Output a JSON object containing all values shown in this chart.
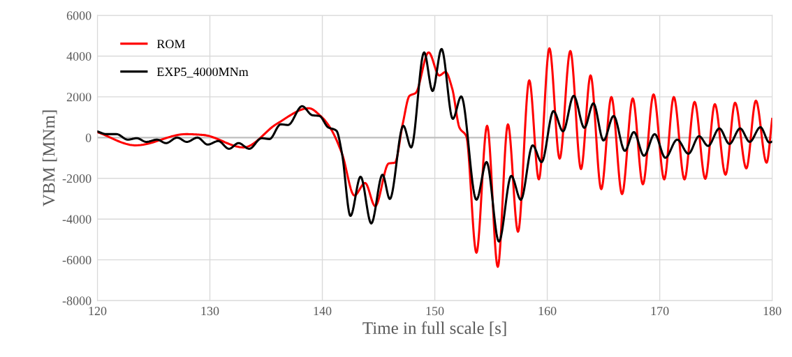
{
  "chart_data": {
    "type": "line",
    "xlabel": "Time in full scale [s]",
    "ylabel": "VBM [MNm]",
    "xlim": [
      120,
      180
    ],
    "xticks": [
      120,
      130,
      140,
      150,
      160,
      170,
      180
    ],
    "ylim": [
      -8000,
      6000
    ],
    "yticks": [
      -8000,
      -6000,
      -4000,
      -2000,
      0,
      2000,
      4000,
      6000
    ],
    "grid": true,
    "legend": "top left",
    "marker": "none",
    "line_style": "solid",
    "series": [
      {
        "name": "ROM",
        "color": "#ff0000",
        "x": [
          120,
          123.4,
          127.9,
          129.4,
          133.0,
          135.96,
          138.8,
          139.9,
          140.7,
          141.75,
          142.85,
          143.8,
          144.7,
          145.9,
          146.45,
          147.15,
          147.75,
          148.3,
          149.45,
          150.4,
          150.95,
          151.55,
          152.2,
          152.8,
          153.7,
          154.65,
          155.6,
          156.5,
          157.4,
          158.4,
          159.25,
          160.19,
          161.1,
          162.05,
          163.0,
          163.85,
          164.8,
          165.7,
          166.65,
          167.6,
          168.5,
          169.45,
          170.4,
          171.25,
          172.2,
          173.1,
          174.05,
          174.9,
          175.85,
          176.7,
          177.7,
          178.55,
          179.5,
          180
        ],
        "values": [
          270,
          -380,
          170,
          130,
          -480,
          680,
          1440,
          1030,
          480,
          -790,
          -2840,
          -2230,
          -3360,
          -1270,
          -1230,
          680,
          2050,
          2190,
          4180,
          3050,
          3220,
          2400,
          480,
          70,
          -5650,
          580,
          -6340,
          650,
          -4620,
          2810,
          -2050,
          4380,
          -1030,
          4250,
          -1540,
          3050,
          -2530,
          1990,
          -2770,
          1920,
          -2290,
          2120,
          -2050,
          1990,
          -2050,
          1750,
          -2020,
          1640,
          -1820,
          1710,
          -1510,
          1810,
          -1230,
          920
        ]
      },
      {
        "name": "EXP5_4000MNm",
        "color": "#000000",
        "x": [
          120,
          120.8,
          121.7,
          122.7,
          123.5,
          124.35,
          125.3,
          126.1,
          127.1,
          127.95,
          128.9,
          129.8,
          130.75,
          131.7,
          132.55,
          133.5,
          134.6,
          135.3,
          136.3,
          136.95,
          138.2,
          139.1,
          139.75,
          140.5,
          141.25,
          141.75,
          142.5,
          143.4,
          144.35,
          145.35,
          146.0,
          147.2,
          147.9,
          149.05,
          149.8,
          150.6,
          151.6,
          152.35,
          153.7,
          154.6,
          155.7,
          156.8,
          157.65,
          158.7,
          159.5,
          160.55,
          161.4,
          162.35,
          163.3,
          164.1,
          165.0,
          165.9,
          166.9,
          167.7,
          168.6,
          169.55,
          170.5,
          171.55,
          172.55,
          173.5,
          174.3,
          175.3,
          176.2,
          177.15,
          178.0,
          178.95,
          179.75,
          180
        ],
        "values": [
          300,
          170,
          170,
          -100,
          -30,
          -210,
          -100,
          -270,
          0,
          -210,
          0,
          -340,
          -170,
          -550,
          -270,
          -550,
          -30,
          -70,
          650,
          620,
          1540,
          1100,
          1060,
          510,
          340,
          -790,
          -3840,
          -1920,
          -4210,
          -1820,
          -3010,
          580,
          -480,
          4180,
          2290,
          4350,
          920,
          2020,
          -3050,
          -1200,
          -5100,
          -1880,
          -3050,
          -380,
          -1200,
          1300,
          310,
          2050,
          480,
          1680,
          -140,
          1060,
          -650,
          270,
          -890,
          170,
          -990,
          -100,
          -790,
          70,
          -410,
          450,
          -310,
          450,
          -210,
          510,
          -240,
          -200
        ]
      }
    ]
  }
}
